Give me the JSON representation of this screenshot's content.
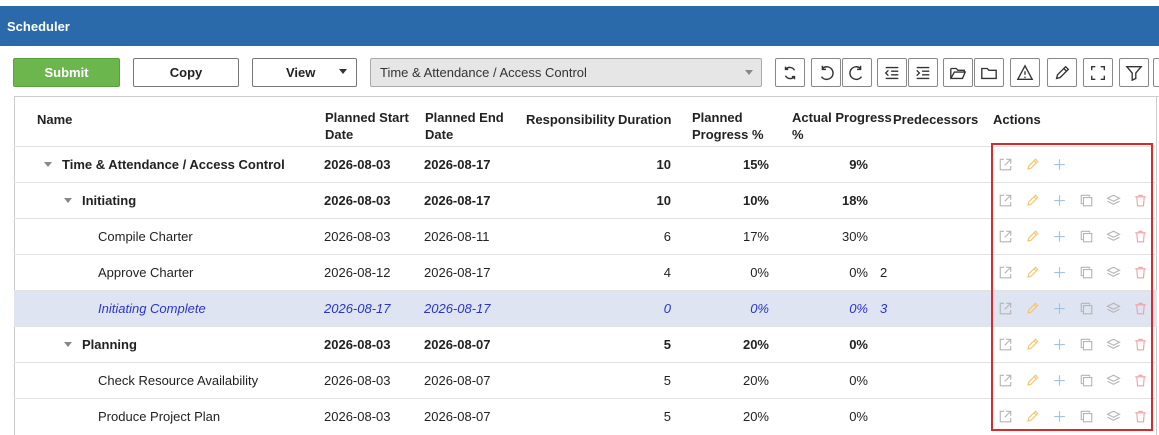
{
  "app": {
    "title": "Scheduler"
  },
  "toolbar": {
    "submit_label": "Submit",
    "copy_label": "Copy",
    "view_label": "View",
    "project_select": "Time & Attendance / Access Control",
    "icons": [
      "refresh-icon",
      "undo-icon",
      "redo-icon",
      "outdent-icon",
      "indent-icon",
      "folder-open-icon",
      "folder-icon",
      "warning-icon",
      "edit-icon",
      "fullscreen-icon",
      "filter-icon"
    ]
  },
  "grid": {
    "columns": [
      "Name",
      "Planned Start Date",
      "Planned End Date",
      "Responsibility",
      "Duration",
      "Planned Progress %",
      "Actual Progress %",
      "Predecessors",
      "Actions"
    ],
    "rows": [
      {
        "name": "Time & Attendance / Access Control",
        "start": "2026-08-03",
        "end": "2026-08-17",
        "responsibility": "",
        "duration": "10",
        "planned": "15%",
        "actual": "9%",
        "pred": "",
        "level": 0,
        "bold": true,
        "group": true
      },
      {
        "name": "Initiating",
        "start": "2026-08-03",
        "end": "2026-08-17",
        "responsibility": "",
        "duration": "10",
        "planned": "10%",
        "actual": "18%",
        "pred": "",
        "level": 1,
        "bold": true,
        "group": true
      },
      {
        "name": "Compile Charter",
        "start": "2026-08-03",
        "end": "2026-08-11",
        "responsibility": "",
        "duration": "6",
        "planned": "17%",
        "actual": "30%",
        "pred": "",
        "level": 2,
        "bold": false,
        "group": false
      },
      {
        "name": "Approve Charter",
        "start": "2026-08-12",
        "end": "2026-08-17",
        "responsibility": "",
        "duration": "4",
        "planned": "0%",
        "actual": "0%",
        "pred": "2",
        "level": 2,
        "bold": false,
        "group": false
      },
      {
        "name": "Initiating Complete",
        "start": "2026-08-17",
        "end": "2026-08-17",
        "responsibility": "",
        "duration": "0",
        "planned": "0%",
        "actual": "0%",
        "pred": "3",
        "level": 2,
        "bold": false,
        "group": false,
        "selected": true
      },
      {
        "name": "Planning",
        "start": "2026-08-03",
        "end": "2026-08-07",
        "responsibility": "",
        "duration": "5",
        "planned": "20%",
        "actual": "0%",
        "pred": "",
        "level": 1,
        "bold": true,
        "group": true
      },
      {
        "name": "Check Resource Availability",
        "start": "2026-08-03",
        "end": "2026-08-07",
        "responsibility": "",
        "duration": "5",
        "planned": "20%",
        "actual": "0%",
        "pred": "",
        "level": 2,
        "bold": false,
        "group": false
      },
      {
        "name": "Produce Project Plan",
        "start": "2026-08-03",
        "end": "2026-08-07",
        "responsibility": "",
        "duration": "5",
        "planned": "20%",
        "actual": "0%",
        "pred": "",
        "level": 2,
        "bold": false,
        "group": false
      }
    ]
  },
  "colors": {
    "header": "#2a6aab",
    "submit": "#6cb64e",
    "selected_row": "#dfe4f2",
    "highlight_box": "#d62c2c"
  }
}
